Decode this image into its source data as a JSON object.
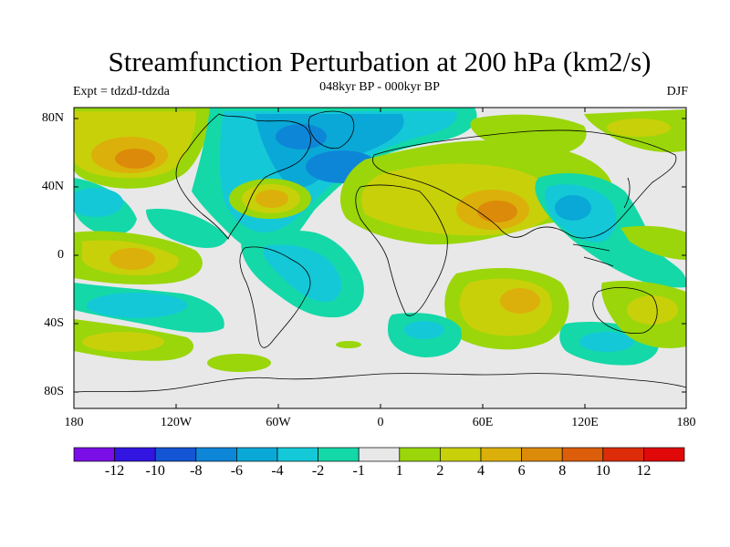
{
  "title": "Streamfunction Perturbation at 200 hPa (km2/s)",
  "subtitle": "048kyr BP - 000kyr BP",
  "left_label": "Expt = tdzdJ-tdzda",
  "right_label": "DJF",
  "latitude_labels": [
    "80N",
    "40N",
    "0",
    "40S",
    "80S"
  ],
  "longitude_labels": [
    "180",
    "120W",
    "60W",
    "0",
    "60E",
    "120E",
    "180"
  ],
  "colorbar": {
    "labels": [
      "-12",
      "-10",
      "-8",
      "-6",
      "-4",
      "-2",
      "-1",
      "1",
      "2",
      "4",
      "6",
      "8",
      "10",
      "12"
    ],
    "colors": [
      "#7a0ee6",
      "#3215e0",
      "#1455d6",
      "#0e86d8",
      "#0aa8d6",
      "#14c8d8",
      "#14d8a8",
      "#e8e8e8",
      "#9ad60a",
      "#c8d00a",
      "#dcb00a",
      "#dc8a0a",
      "#dc5e0a",
      "#dc2c0a",
      "#e00808"
    ]
  },
  "colors": {
    "background": "#e8e8e8",
    "coastline": "#000000"
  }
}
